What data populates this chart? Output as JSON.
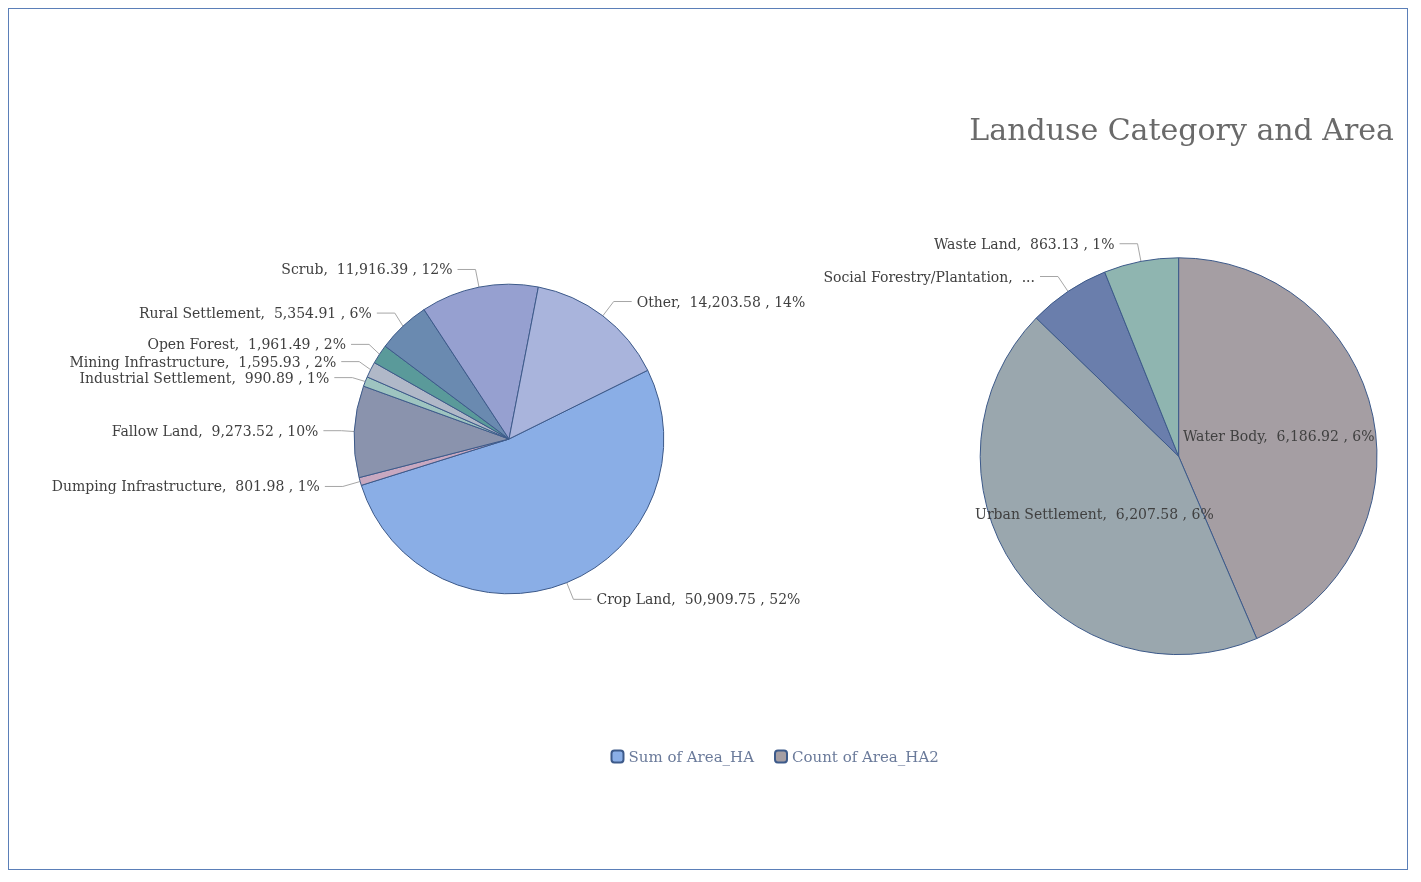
{
  "chart_data": [
    {
      "type": "pie",
      "legend": "bottom right",
      "categories": [
        "Crop Land",
        "Dumping Infrastructure",
        "Fallow Land",
        "Industrial Settlement",
        "Mining Infrastructure",
        "Open Forest",
        "Rural Settlement",
        "Scrub",
        "Other"
      ],
      "series": [
        {
          "name": "Sum of Area_HA",
          "values": [
            50909.75,
            801.98,
            9273.52,
            990.89,
            1595.93,
            1961.49,
            5354.91,
            11916.39,
            14203.58
          ],
          "colors": [
            "#8aaee6",
            "#c8a8c0",
            "#8a93ad",
            "#9ec4c0",
            "#b0b8c8",
            "#5a9a9a",
            "#6a8ab0",
            "#96a0d0",
            "#a9b4dc"
          ],
          "value_labels": [
            "50,909.75 , 52%",
            "801.98 , 1%",
            "9,273.52 , 10%",
            "990.89 , 1%",
            "1,595.93 , 2%",
            "1,961.49 , 2%",
            "5,354.91 , 6%",
            "11,916.39 , 12%",
            "14,203.58 , 14%"
          ]
        }
      ]
    },
    {
      "type": "pie",
      "title": "Landuse Category and Area",
      "legend": "bottom left",
      "categories": [
        "Water Body",
        "Urban Settlement",
        "Social Forestry/Plantation",
        "Waste Land"
      ],
      "series": [
        {
          "name": "Count of Area_HA2",
          "values": [
            6186.92,
            6207.58,
            945.95,
            863.13
          ],
          "colors": [
            "#a59ea3",
            "#9aa7ae",
            "#6a7eac",
            "#8fb5b0"
          ],
          "value_labels": [
            "6,186.92 , 6%",
            "6,207.58 , 6%",
            "...",
            "863.13 , 1%"
          ]
        }
      ]
    }
  ]
}
